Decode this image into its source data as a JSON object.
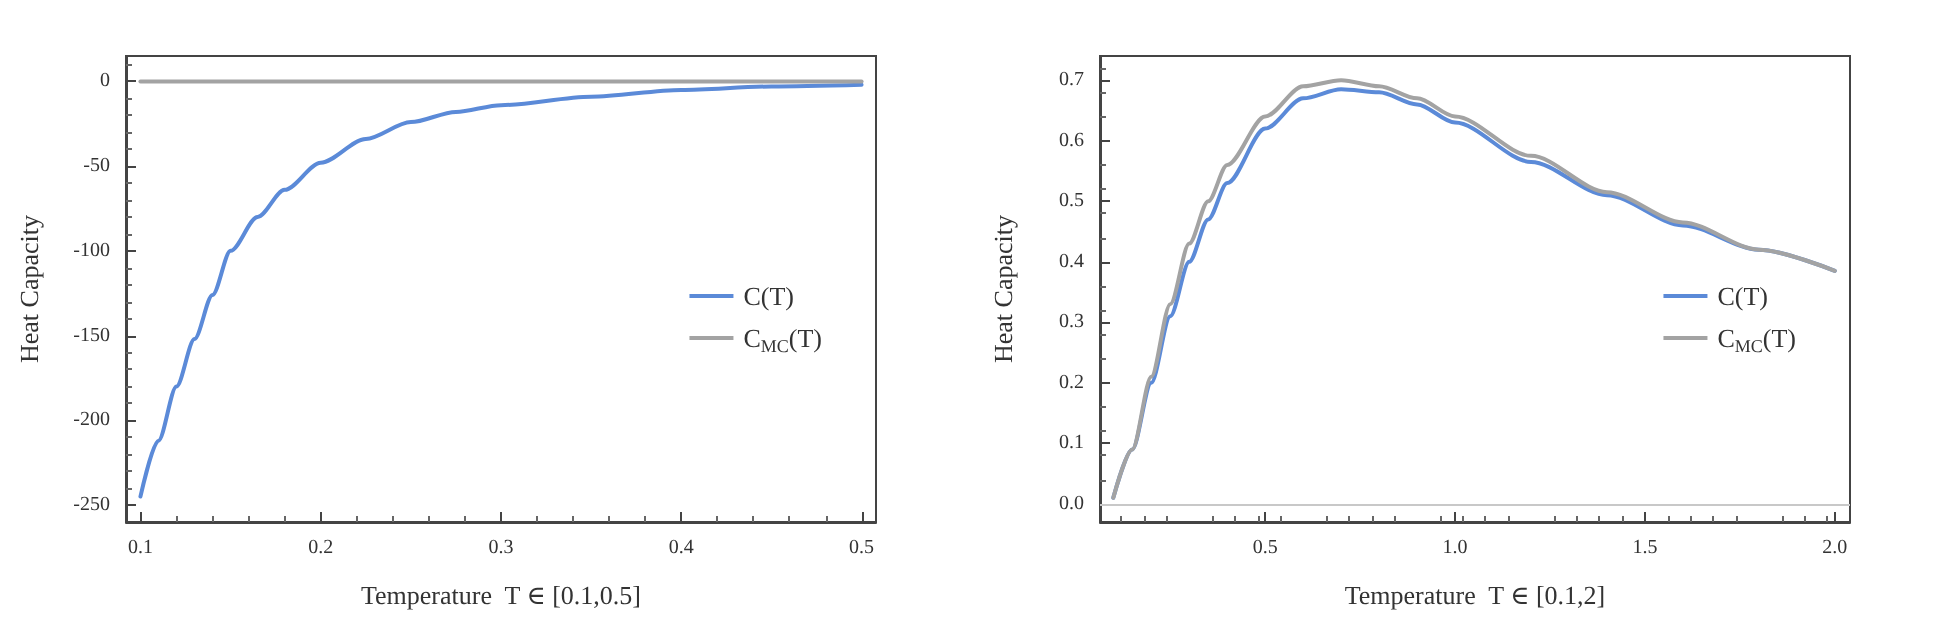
{
  "chart_data": [
    {
      "type": "line",
      "xlabel": "Temperature  T ∈ [0.1,0.5]",
      "ylabel": "Heat Capacity",
      "xlim": [
        0.092,
        0.508
      ],
      "ylim": [
        -260,
        15
      ],
      "xticks": [
        0.1,
        0.2,
        0.3,
        0.4,
        0.5
      ],
      "yticks": [
        -250,
        -200,
        -150,
        -100,
        -50,
        0
      ],
      "grid": false,
      "legend": "right",
      "marker": "none",
      "line_style": "solid",
      "x": [
        0.1,
        0.11,
        0.12,
        0.13,
        0.14,
        0.15,
        0.165,
        0.18,
        0.2,
        0.225,
        0.25,
        0.275,
        0.3,
        0.35,
        0.4,
        0.45,
        0.5
      ],
      "series": [
        {
          "name": "C(T)",
          "color": "#5b8ad8",
          "values": [
            -245,
            -212,
            -180,
            -152,
            -126,
            -100,
            -80,
            -64,
            -48,
            -34,
            -24,
            -18,
            -14,
            -9,
            -5,
            -3,
            -2
          ]
        },
        {
          "name": "C$_{MC}$(T)",
          "color": "#a3a3a3",
          "x": [
            0.1,
            0.5
          ],
          "values": [
            0,
            0
          ]
        }
      ]
    },
    {
      "type": "line",
      "xlabel": "Temperature  T ∈ [0.1,2]",
      "ylabel": "Heat Capacity",
      "xlim": [
        0.065,
        2.04
      ],
      "ylim": [
        -0.03,
        0.74
      ],
      "xticks": [
        0.5,
        {
          "value": 1,
          "label": "1.0"
        },
        1.5,
        {
          "value": 2,
          "label": "2.0"
        }
      ],
      "yticks": [
        {
          "value": 0,
          "label": "0.0"
        },
        0.1,
        0.2,
        0.3,
        0.4,
        0.5,
        0.6,
        0.7
      ],
      "grid": false,
      "legend": "right",
      "marker": "none",
      "line_style": "solid",
      "ref_lines": [
        {
          "axis": "y",
          "value": 0,
          "color": "#c8c8c8"
        }
      ],
      "x": [
        0.1,
        0.15,
        0.2,
        0.25,
        0.3,
        0.35,
        0.4,
        0.5,
        0.6,
        0.7,
        0.8,
        0.9,
        1.0,
        1.2,
        1.4,
        1.6,
        1.8,
        2.0
      ],
      "series": [
        {
          "name": "C(T)",
          "color": "#5b8ad8",
          "values": [
            0.01,
            0.09,
            0.2,
            0.31,
            0.4,
            0.47,
            0.53,
            0.62,
            0.67,
            0.685,
            0.68,
            0.66,
            0.63,
            0.565,
            0.51,
            0.46,
            0.42,
            0.385
          ]
        },
        {
          "name": "C$_{MC}$(T)",
          "color": "#a3a3a3",
          "values": [
            0.01,
            0.09,
            0.21,
            0.33,
            0.43,
            0.5,
            0.56,
            0.64,
            0.69,
            0.7,
            0.69,
            0.67,
            0.64,
            0.575,
            0.515,
            0.465,
            0.42,
            0.385
          ]
        }
      ]
    }
  ]
}
